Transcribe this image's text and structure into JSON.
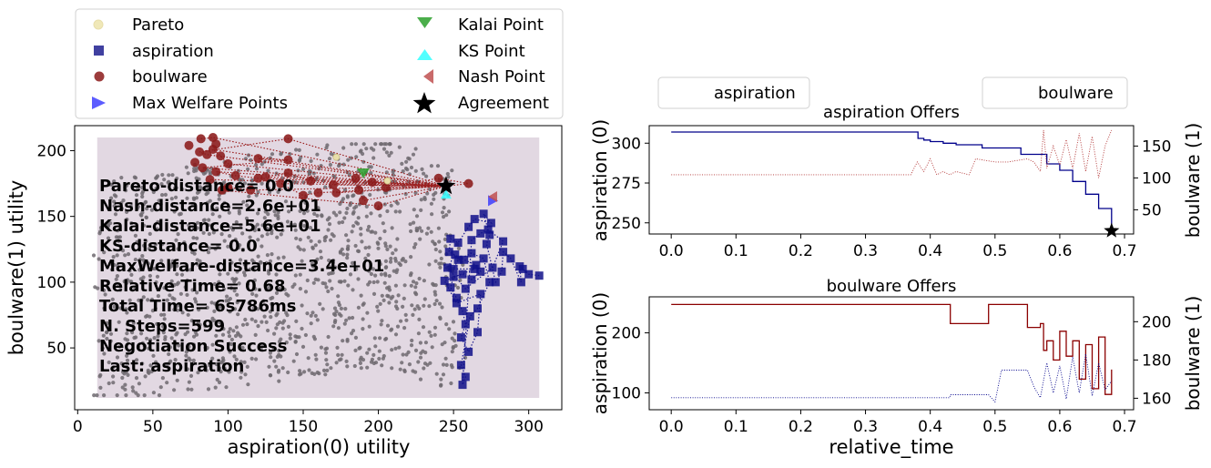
{
  "chart_data": [
    {
      "type": "scatter",
      "xlabel": "aspiration(0) utility",
      "ylabel": "boulware(1) utility",
      "xlim": [
        -2,
        322
      ],
      "ylim": [
        3,
        219
      ],
      "xticks": [
        0,
        50,
        100,
        150,
        200,
        250,
        300
      ],
      "yticks": [
        50,
        100,
        150,
        200
      ],
      "grid": false,
      "legend": {
        "placement": "top, above plot (two columns)",
        "entries": [
          {
            "label": "Pareto",
            "marker": "circle",
            "color": "#f0e8b8"
          },
          {
            "label": "aspiration",
            "marker": "square",
            "color": "#1f1f8f"
          },
          {
            "label": "boulware",
            "marker": "circle",
            "color": "#8b1a1a"
          },
          {
            "label": "Max Welfare Points",
            "marker": "triangle-right",
            "color": "#3333ff"
          },
          {
            "label": "Kalai Point",
            "marker": "triangle-down",
            "color": "#2ca02c"
          },
          {
            "label": "KS Point",
            "marker": "triangle-up",
            "color": "#33ffff"
          },
          {
            "label": "Nash Point",
            "marker": "triangle-left",
            "color": "#c05050"
          },
          {
            "label": "Agreement",
            "marker": "star",
            "color": "#000000"
          }
        ]
      },
      "outcome_region": {
        "x": [
          13,
          307
        ],
        "y": [
          12,
          210
        ],
        "color": "#e2d8e2"
      },
      "aspiration_offers": [
        [
          307,
          105
        ],
        [
          300,
          106
        ],
        [
          296,
          110
        ],
        [
          294,
          112
        ],
        [
          295,
          100
        ],
        [
          288,
          118
        ],
        [
          283,
          123
        ],
        [
          282,
          108
        ],
        [
          278,
          100
        ],
        [
          272,
          129
        ],
        [
          274,
          136
        ],
        [
          270,
          152
        ],
        [
          275,
          145
        ],
        [
          264,
          148
        ],
        [
          260,
          142
        ],
        [
          253,
          130
        ],
        [
          248,
          133
        ],
        [
          247,
          123
        ],
        [
          257,
          117
        ],
        [
          265,
          113
        ],
        [
          268,
          108
        ],
        [
          262,
          102
        ],
        [
          256,
          106
        ],
        [
          250,
          104
        ],
        [
          248,
          96
        ],
        [
          252,
          88
        ],
        [
          256,
          78
        ],
        [
          258,
          68
        ],
        [
          255,
          58
        ],
        [
          260,
          47
        ],
        [
          266,
          62
        ],
        [
          268,
          91
        ],
        [
          252,
          84
        ],
        [
          244,
          101
        ],
        [
          264,
          110
        ],
        [
          250,
          110
        ],
        [
          253,
          117
        ],
        [
          262,
          122
        ],
        [
          270,
          118
        ],
        [
          274,
          100
        ],
        [
          266,
          80
        ],
        [
          261,
          74
        ],
        [
          255,
          37
        ],
        [
          258,
          28
        ],
        [
          256,
          22
        ],
        [
          262,
          132
        ],
        [
          268,
          137
        ],
        [
          273,
          140
        ],
        [
          283,
          131
        ],
        [
          276,
          111
        ],
        [
          258,
          95
        ],
        [
          246,
          111
        ],
        [
          251,
          121
        ]
      ],
      "boulware_offers": [
        [
          82,
          209
        ],
        [
          90,
          210
        ],
        [
          140,
          209
        ],
        [
          81,
          199
        ],
        [
          86,
          197
        ],
        [
          90,
          201
        ],
        [
          95,
          196
        ],
        [
          100,
          190
        ],
        [
          120,
          194
        ],
        [
          140,
          193
        ],
        [
          83,
          187
        ],
        [
          92,
          184
        ],
        [
          105,
          181
        ],
        [
          120,
          179
        ],
        [
          125,
          180
        ],
        [
          140,
          183
        ],
        [
          155,
          177
        ],
        [
          170,
          174
        ],
        [
          185,
          179
        ],
        [
          196,
          176
        ],
        [
          205,
          172
        ],
        [
          240,
          179
        ],
        [
          260,
          175
        ],
        [
          88,
          178
        ],
        [
          100,
          172
        ],
        [
          115,
          170
        ],
        [
          135,
          175
        ],
        [
          150,
          166
        ],
        [
          160,
          168
        ],
        [
          172,
          168
        ],
        [
          187,
          170
        ],
        [
          190,
          162
        ],
        [
          200,
          158
        ],
        [
          96,
          170
        ]
      ],
      "boulware_extra": [
        [
          74,
          204
        ],
        [
          78,
          191
        ],
        [
          92,
          205
        ]
      ],
      "pareto_points": [
        [
          172,
          195
        ],
        [
          206,
          177
        ]
      ],
      "max_welfare_points": [
        [
          276,
          162
        ]
      ],
      "kalai_point": [
        190,
        183
      ],
      "ks_point": [
        245,
        167
      ],
      "nash_point": [
        276,
        165
      ],
      "agreement": [
        245,
        173
      ],
      "annotations": {
        "lines": [
          "Pareto-distance=  0.0",
          "Nash-distance=2.6e+01",
          "Kalai-distance=5.6e+01",
          "KS-distance=  0.0",
          "MaxWelfare-distance=3.4e+01",
          "Relative Time= 0.68",
          "Total Time= 6s786ms",
          "N. Steps=599",
          "Negotiation Success",
          "Last: aspiration"
        ]
      }
    },
    {
      "type": "line",
      "title": "aspiration Offers",
      "xlabel": "",
      "ylabel": "aspiration (0)",
      "ylabel_right": "boulware (1)",
      "legend": {
        "placement": "top-left, above plot",
        "label": "aspiration"
      },
      "xlim": [
        -0.034,
        0.714
      ],
      "xticks": [
        0.0,
        0.1,
        0.2,
        0.3,
        0.4,
        0.5,
        0.6,
        0.7
      ],
      "ylim_left": [
        243,
        311
      ],
      "yticks_left": [
        250,
        275,
        300
      ],
      "ylim_right": [
        12,
        182
      ],
      "yticks_right": [
        50,
        100,
        150
      ],
      "series": [
        {
          "name": "aspiration",
          "axis": "left",
          "style": "solid",
          "color": "#00008b",
          "x": [
            0,
            0.38,
            0.381,
            0.39,
            0.4,
            0.42,
            0.44,
            0.46,
            0.48,
            0.5,
            0.52,
            0.54,
            0.56,
            0.58,
            0.6,
            0.62,
            0.64,
            0.66,
            0.68
          ],
          "y": [
            307,
            307,
            303,
            302,
            301,
            300,
            299,
            299,
            297,
            297,
            297,
            293,
            293,
            287,
            283,
            276,
            268,
            259,
            245
          ]
        },
        {
          "name": "",
          "axis": "right",
          "style": "dotted",
          "color": "#b03030",
          "x": [
            0,
            0.37,
            0.38,
            0.39,
            0.4,
            0.41,
            0.42,
            0.43,
            0.44,
            0.46,
            0.47,
            0.5,
            0.52,
            0.55,
            0.56,
            0.57,
            0.575,
            0.58,
            0.59,
            0.6,
            0.61,
            0.62,
            0.63,
            0.64,
            0.65,
            0.66,
            0.67,
            0.68
          ],
          "y": [
            105,
            105,
            125,
            110,
            130,
            105,
            110,
            105,
            110,
            105,
            130,
            125,
            125,
            130,
            125,
            110,
            175,
            115,
            150,
            120,
            160,
            115,
            170,
            110,
            165,
            100,
            150,
            175
          ]
        }
      ],
      "markers": [
        {
          "label": "Agreement",
          "x": 0.68,
          "y": 245,
          "axis": "left",
          "marker": "star"
        }
      ]
    },
    {
      "type": "line",
      "title": "boulware Offers",
      "xlabel": "relative_time",
      "ylabel": "aspiration (0)",
      "ylabel_right": "boulware (1)",
      "legend": {
        "placement": "top-right, above plot",
        "label": "boulware"
      },
      "xlim": [
        -0.034,
        0.714
      ],
      "xticks": [
        0.0,
        0.1,
        0.2,
        0.3,
        0.4,
        0.5,
        0.6,
        0.7
      ],
      "ylim_left": [
        72,
        260
      ],
      "yticks_left": [
        100,
        200
      ],
      "ylim_right": [
        154,
        213
      ],
      "yticks_right": [
        160,
        180,
        200
      ],
      "series": [
        {
          "name": "boulware",
          "axis": "right",
          "style": "solid",
          "color": "#8b0000",
          "x": [
            0,
            0.43,
            0.431,
            0.46,
            0.48,
            0.49,
            0.5,
            0.52,
            0.54,
            0.55,
            0.56,
            0.57,
            0.575,
            0.58,
            0.59,
            0.6,
            0.61,
            0.62,
            0.63,
            0.64,
            0.65,
            0.66,
            0.67,
            0.68
          ],
          "y": [
            209,
            209,
            199,
            199,
            199,
            209,
            209,
            209,
            209,
            197,
            197,
            199,
            185,
            190,
            180,
            195,
            182,
            190,
            170,
            188,
            165,
            192,
            162,
            175
          ]
        },
        {
          "name": "",
          "axis": "left",
          "style": "dotted",
          "color": "#00008b",
          "x": [
            0,
            0.43,
            0.431,
            0.49,
            0.5,
            0.51,
            0.55,
            0.56,
            0.57,
            0.58,
            0.59,
            0.6,
            0.61,
            0.62,
            0.63,
            0.64,
            0.65,
            0.66,
            0.67,
            0.68
          ],
          "y": [
            92,
            92,
            97,
            97,
            85,
            138,
            138,
            110,
            92,
            150,
            100,
            145,
            90,
            160,
            100,
            165,
            95,
            150,
            105,
            120
          ]
        }
      ]
    }
  ]
}
